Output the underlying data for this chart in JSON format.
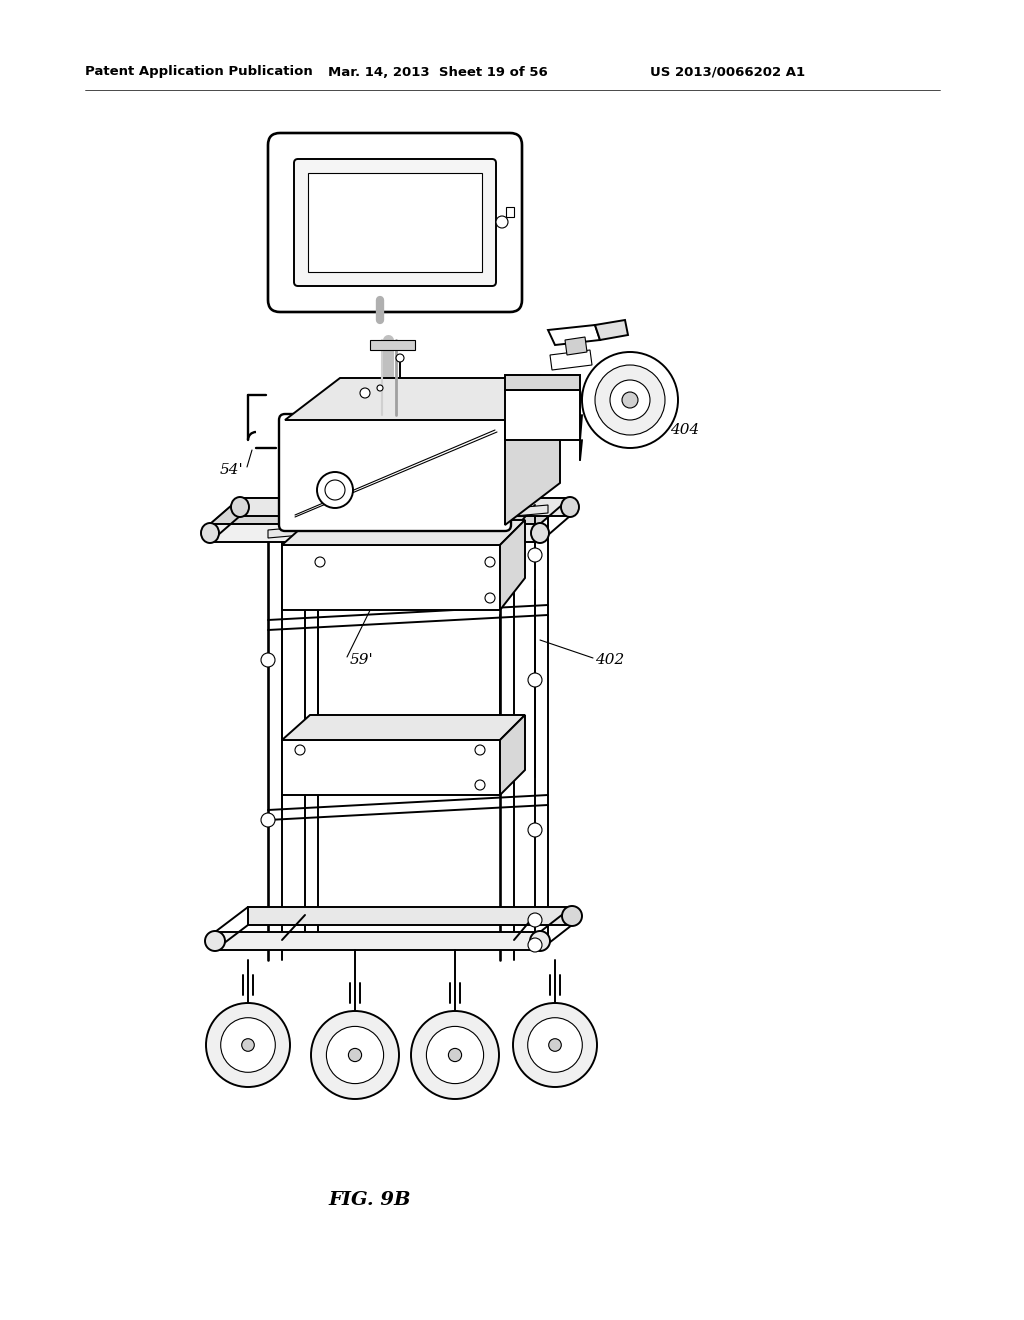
{
  "bg_color": "#ffffff",
  "header_left": "Patent Application Publication",
  "header_mid": "Mar. 14, 2013  Sheet 19 of 56",
  "header_right": "US 2013/0066202 A1",
  "figure_label": "FIG. 9B",
  "lw_main": 1.4,
  "lw_thin": 0.8,
  "lw_thick": 2.0
}
